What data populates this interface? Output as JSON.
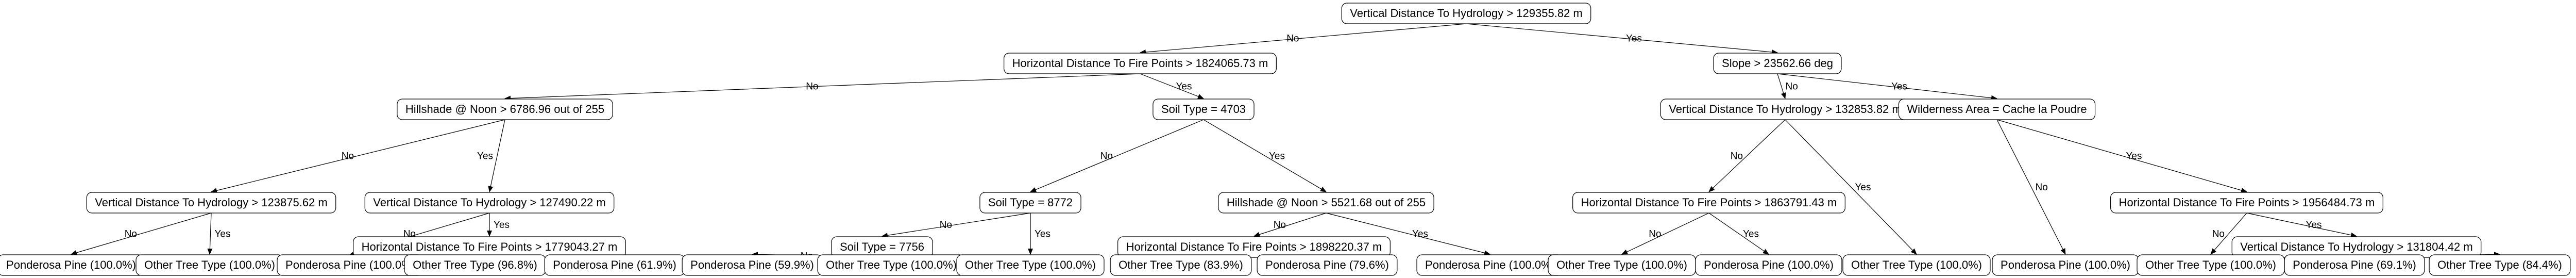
{
  "nodes": [
    {
      "id": "n0",
      "label": "Vertical Distance To Hydrology > 129355.82 m"
    },
    {
      "id": "n1",
      "label": "Horizontal Distance To Fire Points > 1824065.73 m"
    },
    {
      "id": "n2",
      "label": "Slope > 23562.66 deg"
    },
    {
      "id": "n3",
      "label": "Hillshade @ Noon > 6786.96 out of 255"
    },
    {
      "id": "n4",
      "label": "Soil Type = 4703"
    },
    {
      "id": "n5",
      "label": "Vertical Distance To Hydrology > 123875.62 m"
    },
    {
      "id": "n6",
      "label": "Vertical Distance To Hydrology > 127490.22 m"
    },
    {
      "id": "n7",
      "label": "Horizontal Distance To Fire Points > 1779043.27 m"
    },
    {
      "id": "n8",
      "label": "Soil Type = 8772"
    },
    {
      "id": "n9",
      "label": "Hillshade @ Noon > 5521.68 out of 255"
    },
    {
      "id": "n10",
      "label": "Soil Type = 7756"
    },
    {
      "id": "n11",
      "label": "Horizontal Distance To Fire Points > 1898220.37 m"
    },
    {
      "id": "n12",
      "label": "Vertical Distance To Hydrology > 132853.82 m"
    },
    {
      "id": "n13",
      "label": "Wilderness Area = Cache la Poudre"
    },
    {
      "id": "n14",
      "label": "Horizontal Distance To Fire Points > 1863791.43 m"
    },
    {
      "id": "n15",
      "label": "Horizontal Distance To Fire Points > 1956484.73 m"
    },
    {
      "id": "n16",
      "label": "Vertical Distance To Hydrology > 131804.42 m"
    },
    {
      "id": "l1",
      "label": "Ponderosa Pine (100.0%)"
    },
    {
      "id": "l2",
      "label": "Other Tree Type (100.0%)"
    },
    {
      "id": "l3",
      "label": "Ponderosa Pine (100.0%)"
    },
    {
      "id": "l4",
      "label": "Other Tree Type (96.8%)"
    },
    {
      "id": "l5",
      "label": "Ponderosa Pine (61.9%)"
    },
    {
      "id": "l6",
      "label": "Ponderosa Pine (59.9%)"
    },
    {
      "id": "l7",
      "label": "Other Tree Type (100.0%)"
    },
    {
      "id": "l8",
      "label": "Other Tree Type (100.0%)"
    },
    {
      "id": "l9",
      "label": "Other Tree Type (83.9%)"
    },
    {
      "id": "l10",
      "label": "Ponderosa Pine (79.6%)"
    },
    {
      "id": "l11",
      "label": "Ponderosa Pine (100.0%)"
    },
    {
      "id": "l12",
      "label": "Other Tree Type (100.0%)"
    },
    {
      "id": "l13",
      "label": "Ponderosa Pine (100.0%)"
    },
    {
      "id": "l14",
      "label": "Other Tree Type (100.0%)"
    },
    {
      "id": "l15",
      "label": "Ponderosa Pine (100.0%)"
    },
    {
      "id": "l16",
      "label": "Other Tree Type (100.0%)"
    },
    {
      "id": "l17",
      "label": "Ponderosa Pine (69.1%)"
    },
    {
      "id": "l18",
      "label": "Other Tree Type (84.4%)"
    }
  ],
  "edges": [
    {
      "from": "n0",
      "to": "n1",
      "label": "No"
    },
    {
      "from": "n0",
      "to": "n2",
      "label": "Yes"
    },
    {
      "from": "n1",
      "to": "n3",
      "label": "No"
    },
    {
      "from": "n1",
      "to": "n4",
      "label": "Yes"
    },
    {
      "from": "n3",
      "to": "n5",
      "label": "No"
    },
    {
      "from": "n3",
      "to": "n6",
      "label": "Yes"
    },
    {
      "from": "n5",
      "to": "l1",
      "label": "No"
    },
    {
      "from": "n5",
      "to": "l2",
      "label": "Yes"
    },
    {
      "from": "n6",
      "to": "l3",
      "label": "No"
    },
    {
      "from": "n6",
      "to": "n7",
      "label": "Yes"
    },
    {
      "from": "n7",
      "to": "l4",
      "label": "No"
    },
    {
      "from": "n7",
      "to": "l5",
      "label": "Yes"
    },
    {
      "from": "n4",
      "to": "n8",
      "label": "No"
    },
    {
      "from": "n4",
      "to": "n9",
      "label": "Yes"
    },
    {
      "from": "n8",
      "to": "n10",
      "label": "No"
    },
    {
      "from": "n8",
      "to": "l8",
      "label": "Yes"
    },
    {
      "from": "n10",
      "to": "l6",
      "label": "No"
    },
    {
      "from": "n10",
      "to": "l7",
      "label": "Yes"
    },
    {
      "from": "n9",
      "to": "n11",
      "label": "No"
    },
    {
      "from": "n9",
      "to": "l11",
      "label": "Yes"
    },
    {
      "from": "n11",
      "to": "l9",
      "label": "No"
    },
    {
      "from": "n11",
      "to": "l10",
      "label": "Yes"
    },
    {
      "from": "n2",
      "to": "n12",
      "label": "No"
    },
    {
      "from": "n2",
      "to": "n13",
      "label": "Yes"
    },
    {
      "from": "n12",
      "to": "n14",
      "label": "No"
    },
    {
      "from": "n12",
      "to": "l14",
      "label": "Yes"
    },
    {
      "from": "n14",
      "to": "l12",
      "label": "No"
    },
    {
      "from": "n14",
      "to": "l13",
      "label": "Yes"
    },
    {
      "from": "n13",
      "to": "l15",
      "label": "No"
    },
    {
      "from": "n13",
      "to": "n15",
      "label": "Yes"
    },
    {
      "from": "n15",
      "to": "l16",
      "label": "No"
    },
    {
      "from": "n15",
      "to": "n16",
      "label": "Yes"
    },
    {
      "from": "n16",
      "to": "l17",
      "label": "No"
    },
    {
      "from": "n16",
      "to": "l18",
      "label": "Yes"
    }
  ]
}
